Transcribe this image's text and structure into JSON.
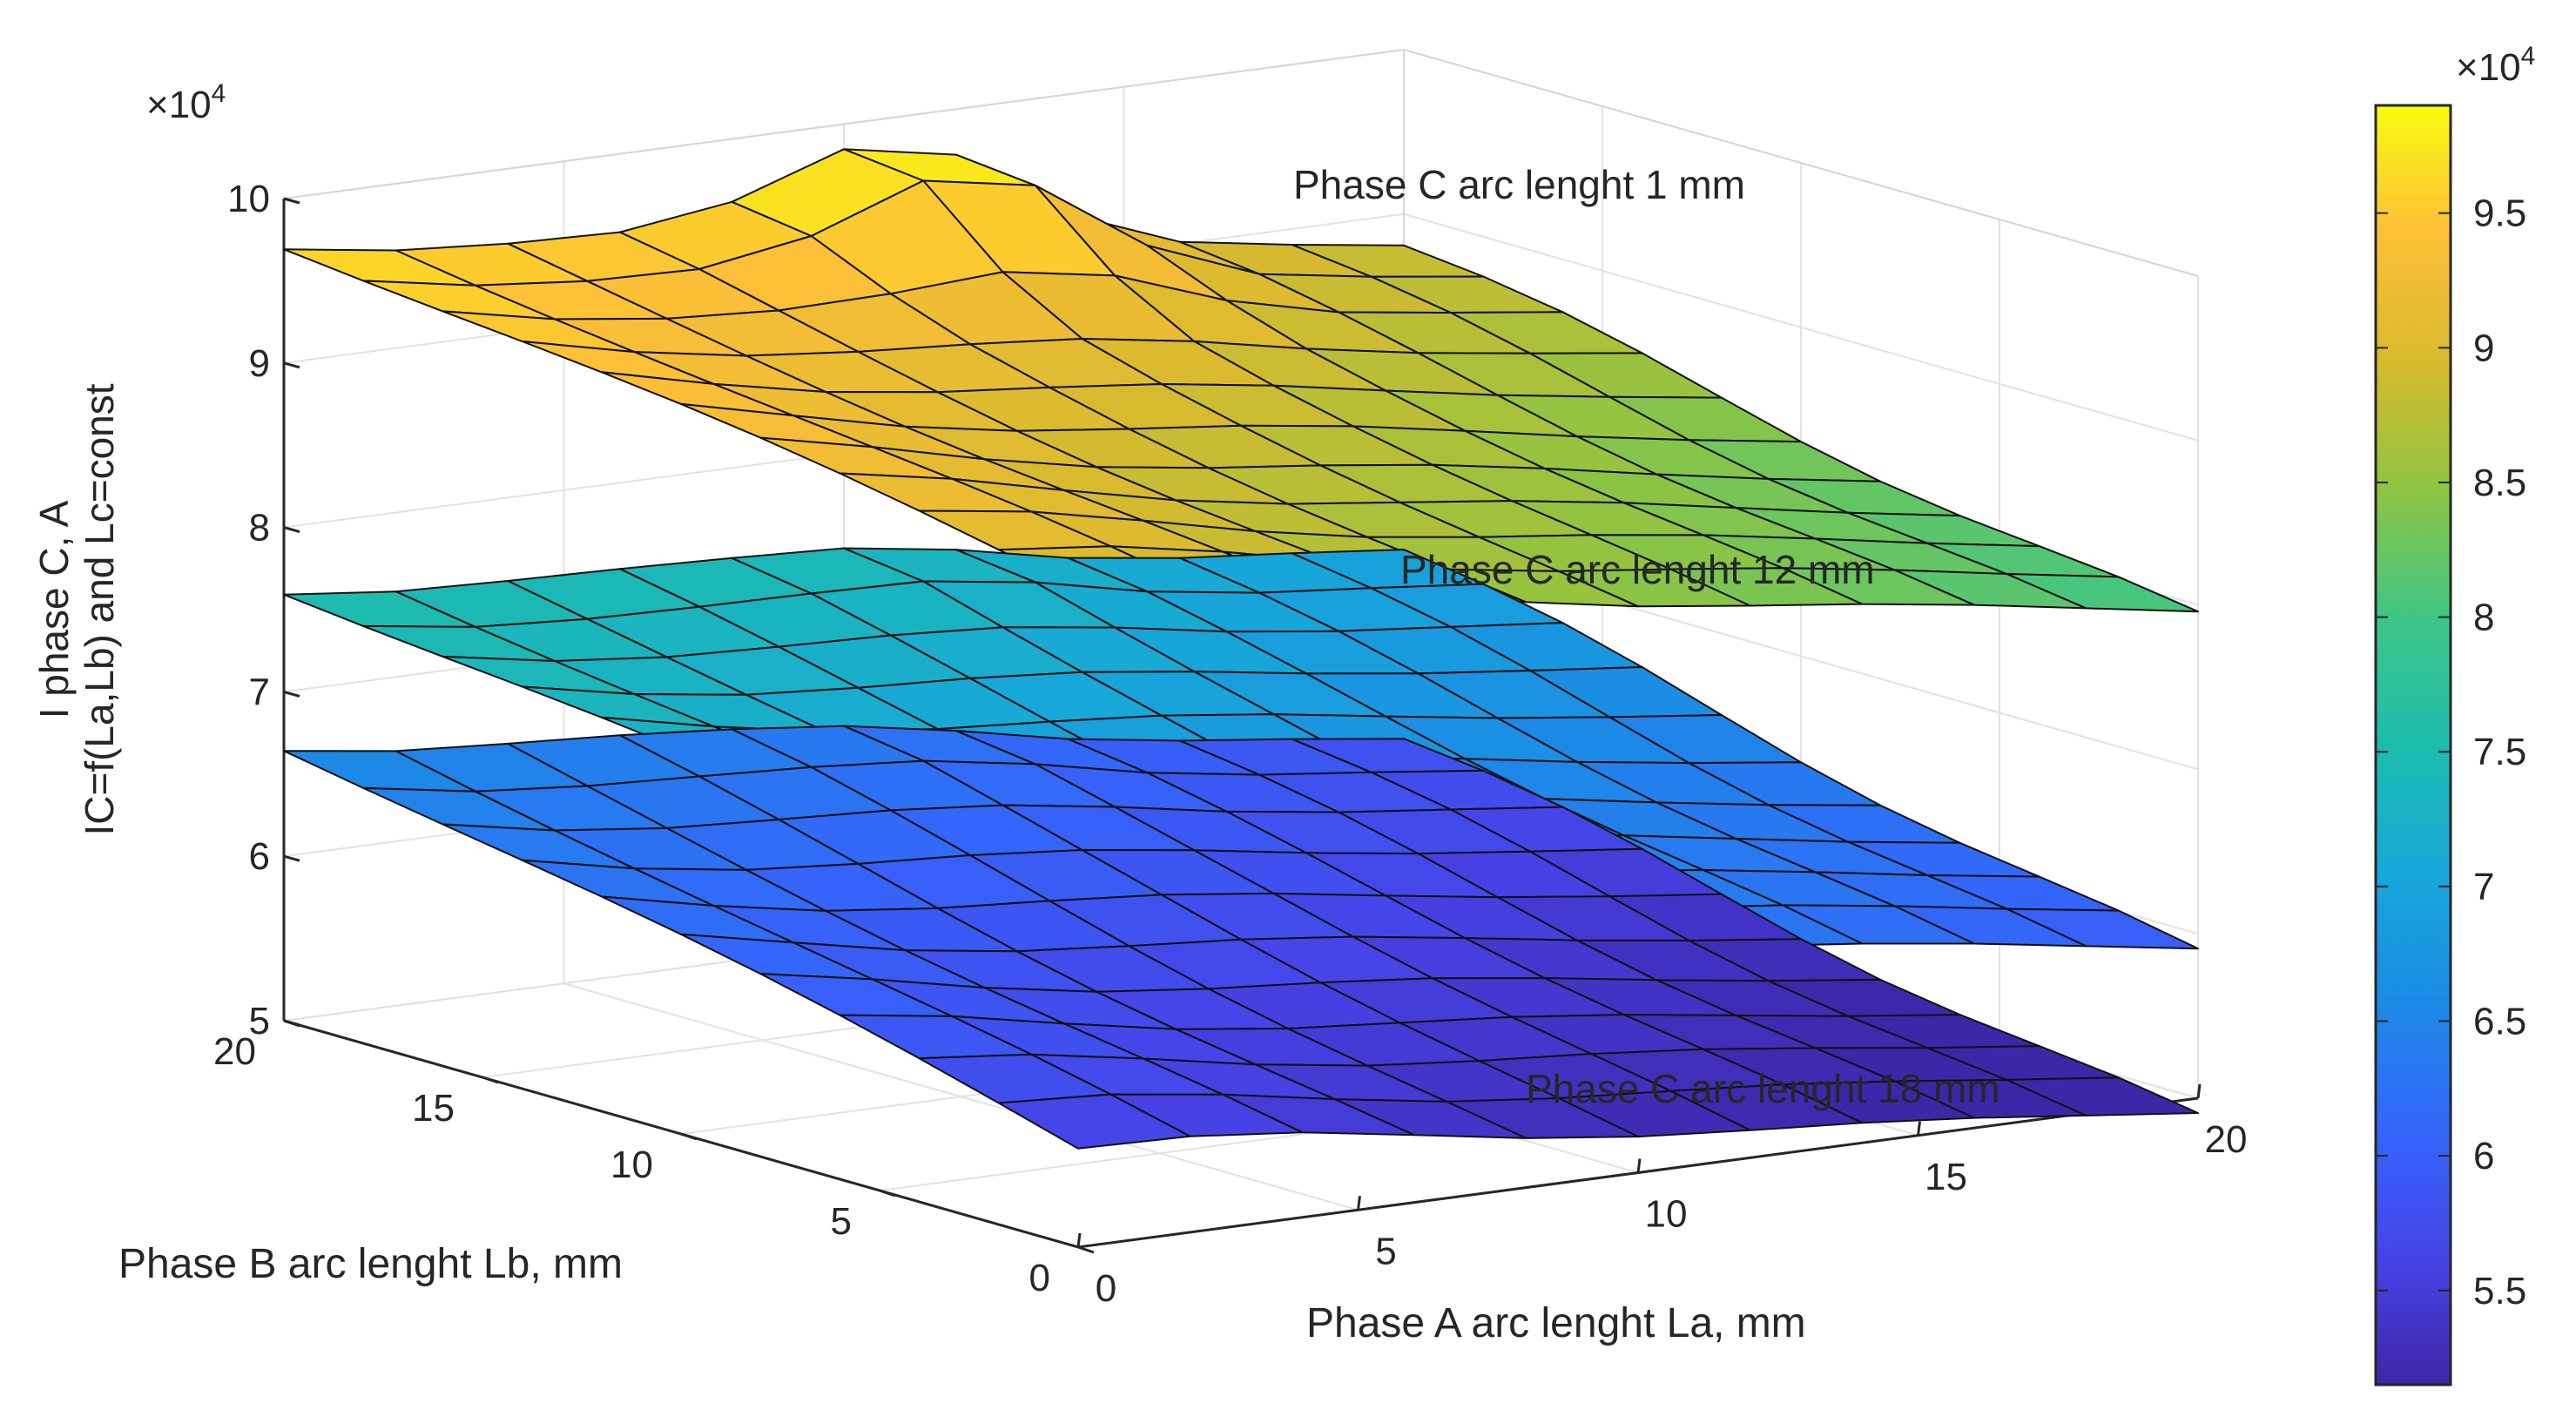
{
  "chart_data": {
    "type": "surface3d",
    "multiplier": "×10",
    "multiplier_exp": "4",
    "zlabel_line1": "I phase C, A",
    "zlabel_line2": "IC=f(La,Lb) and Lc=const",
    "xlabel": "Phase A arc lenght La, mm",
    "ylabel": "Phase B arc lenght Lb, mm",
    "x": [
      0,
      2,
      4,
      6,
      8,
      10,
      12,
      14,
      16,
      18,
      20
    ],
    "y": [
      0,
      2,
      4,
      6,
      8,
      10,
      12,
      14,
      16,
      18,
      20
    ],
    "xlim": [
      0,
      20
    ],
    "ylim": [
      0,
      20
    ],
    "zlim": [
      5,
      10
    ],
    "x_ticks": [
      "0",
      "5",
      "10",
      "15",
      "20"
    ],
    "y_ticks": [
      "0",
      "5",
      "10",
      "15",
      "20"
    ],
    "z_ticks": [
      "5",
      "6",
      "7",
      "8",
      "9",
      "10"
    ],
    "surfaces": [
      {
        "name": "Phase C arc lenght 1 mm",
        "corner_values": {
          "La0_Lb0": 9.0,
          "La20_Lb0": 7.9,
          "La0_Lb20": 9.75,
          "La20_Lb20": 8.8
        },
        "bump": 0.7
      },
      {
        "name": "Phase C arc lenght 12 mm",
        "corner_values": {
          "La0_Lb0": 6.9,
          "La20_Lb0": 5.85,
          "La0_Lb20": 7.65,
          "La20_Lb20": 6.95
        },
        "bump": 0.12
      },
      {
        "name": "Phase C arc lenght 18 mm",
        "corner_values": {
          "La0_Lb0": 5.6,
          "La20_Lb0": 4.85,
          "La0_Lb20": 6.7,
          "La20_Lb20": 5.8
        },
        "bump": 0.08
      }
    ],
    "colorbar": {
      "multiplier": "×10",
      "multiplier_exp": "4",
      "range": [
        5.15,
        9.9
      ],
      "ticks": [
        "5.5",
        "6",
        "6.5",
        "7",
        "7.5",
        "8",
        "8.5",
        "9",
        "9.5"
      ],
      "colormap": "parula"
    }
  }
}
